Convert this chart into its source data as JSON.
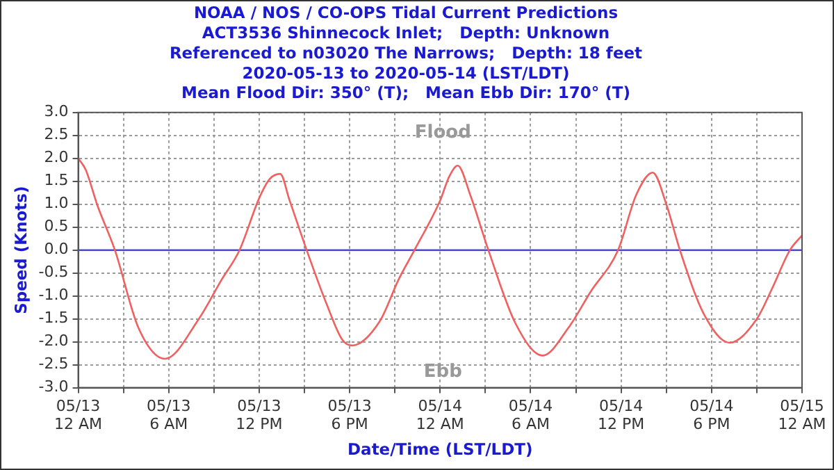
{
  "chart_data": {
    "type": "line",
    "title": "NOAA / NOS / CO-OPS Tidal Current Predictions",
    "subtitle": "ACT3536 Shinnecock Inlet;   Depth: Unknown\nReferenced to n03020 The Narrows;   Depth: 18 feet\n2020-05-13 to 2020-05-14 (LST/LDT)\nMean Flood Dir: 350° (T);   Mean Ebb Dir: 170° (T)",
    "xlabel": "Date/Time (LST/LDT)",
    "ylabel": "Speed (Knots)",
    "annotations": [
      "Flood",
      "Ebb"
    ],
    "series": [
      {
        "color": "#f06060",
        "x": [
          "2020-05-13T00:00",
          "2020-05-13T00:30",
          "2020-05-13T01:16",
          "2020-05-13T02:26",
          "2020-05-13T04:00",
          "2020-05-13T05:45",
          "2020-05-13T08:00",
          "2020-05-13T09:30",
          "2020-05-13T10:42",
          "2020-05-13T12:00",
          "2020-05-13T12:42",
          "2020-05-13T13:24",
          "2020-05-13T14:00",
          "2020-05-13T15:09",
          "2020-05-13T16:30",
          "2020-05-13T17:30",
          "2020-05-13T18:09",
          "2020-05-13T20:00",
          "2020-05-13T21:15",
          "2020-05-13T22:18",
          "2020-05-14T00:00",
          "2020-05-14T00:36",
          "2020-05-14T01:10",
          "2020-05-14T02:00",
          "2020-05-14T03:12",
          "2020-05-14T05:00",
          "2020-05-14T06:48",
          "2020-05-14T08:30",
          "2020-05-14T10:00",
          "2020-05-14T11:48",
          "2020-05-14T13:00",
          "2020-05-14T14:06",
          "2020-05-14T15:00",
          "2020-05-14T15:54",
          "2020-05-14T17:30",
          "2020-05-14T19:12",
          "2020-05-14T21:00",
          "2020-05-14T22:00",
          "2020-05-14T23:12",
          "2020-05-15T00:00"
        ],
        "values": [
          2.0,
          1.75,
          0.98,
          0,
          -1.7,
          -2.37,
          -1.5,
          -0.65,
          0,
          1.13,
          1.55,
          1.66,
          1.1,
          0,
          -1.2,
          -1.95,
          -2.08,
          -1.55,
          -0.64,
          0,
          1.08,
          1.6,
          1.84,
          1.2,
          0,
          -1.6,
          -2.3,
          -1.7,
          -0.9,
          0,
          1.2,
          1.69,
          1.0,
          0,
          -1.4,
          -2.02,
          -1.5,
          -0.85,
          0,
          0.32
        ]
      }
    ],
    "xlim": [
      "2020-05-13T00:00",
      "2020-05-15T00:00"
    ],
    "xticks": [
      {
        "value": "2020-05-13T00:00",
        "label": "05/13\n12 AM"
      },
      {
        "value": "2020-05-13T03:00",
        "label": null
      },
      {
        "value": "2020-05-13T06:00",
        "label": "05/13\n6 AM"
      },
      {
        "value": "2020-05-13T09:00",
        "label": null
      },
      {
        "value": "2020-05-13T12:00",
        "label": "05/13\n12 PM"
      },
      {
        "value": "2020-05-13T15:00",
        "label": null
      },
      {
        "value": "2020-05-13T18:00",
        "label": "05/13\n6 PM"
      },
      {
        "value": "2020-05-13T21:00",
        "label": null
      },
      {
        "value": "2020-05-14T00:00",
        "label": "05/14\n12 AM"
      },
      {
        "value": "2020-05-14T03:00",
        "label": null
      },
      {
        "value": "2020-05-14T06:00",
        "label": "05/14\n6 AM"
      },
      {
        "value": "2020-05-14T09:00",
        "label": null
      },
      {
        "value": "2020-05-14T12:00",
        "label": "05/14\n12 PM"
      },
      {
        "value": "2020-05-14T15:00",
        "label": null
      },
      {
        "value": "2020-05-14T18:00",
        "label": "05/14\n6 PM"
      },
      {
        "value": "2020-05-14T21:00",
        "label": null
      },
      {
        "value": "2020-05-15T00:00",
        "label": "05/15\n12 AM"
      }
    ],
    "ylim": [
      -3,
      3
    ],
    "yticks": [
      {
        "value": -3,
        "label": "-3.0"
      },
      {
        "value": -2.5,
        "label": "-2.5"
      },
      {
        "value": -2,
        "label": "-2.0"
      },
      {
        "value": -1.5,
        "label": "-1.5"
      },
      {
        "value": -1,
        "label": "-1.0"
      },
      {
        "value": -0.5,
        "label": "-0.5"
      },
      {
        "value": 0,
        "label": "0.0"
      },
      {
        "value": 0.5,
        "label": "0.5"
      },
      {
        "value": 1,
        "label": "1.0"
      },
      {
        "value": 1.5,
        "label": "1.5"
      },
      {
        "value": 2,
        "label": "2.0"
      },
      {
        "value": 2.5,
        "label": "2.5"
      },
      {
        "value": 3,
        "label": "3.0"
      }
    ],
    "ref_lines": [
      {
        "axis": "y",
        "value": 0,
        "color": "#4a4ad0"
      }
    ],
    "grid": true,
    "legend": false,
    "marker": "none",
    "line_style": "solid"
  }
}
